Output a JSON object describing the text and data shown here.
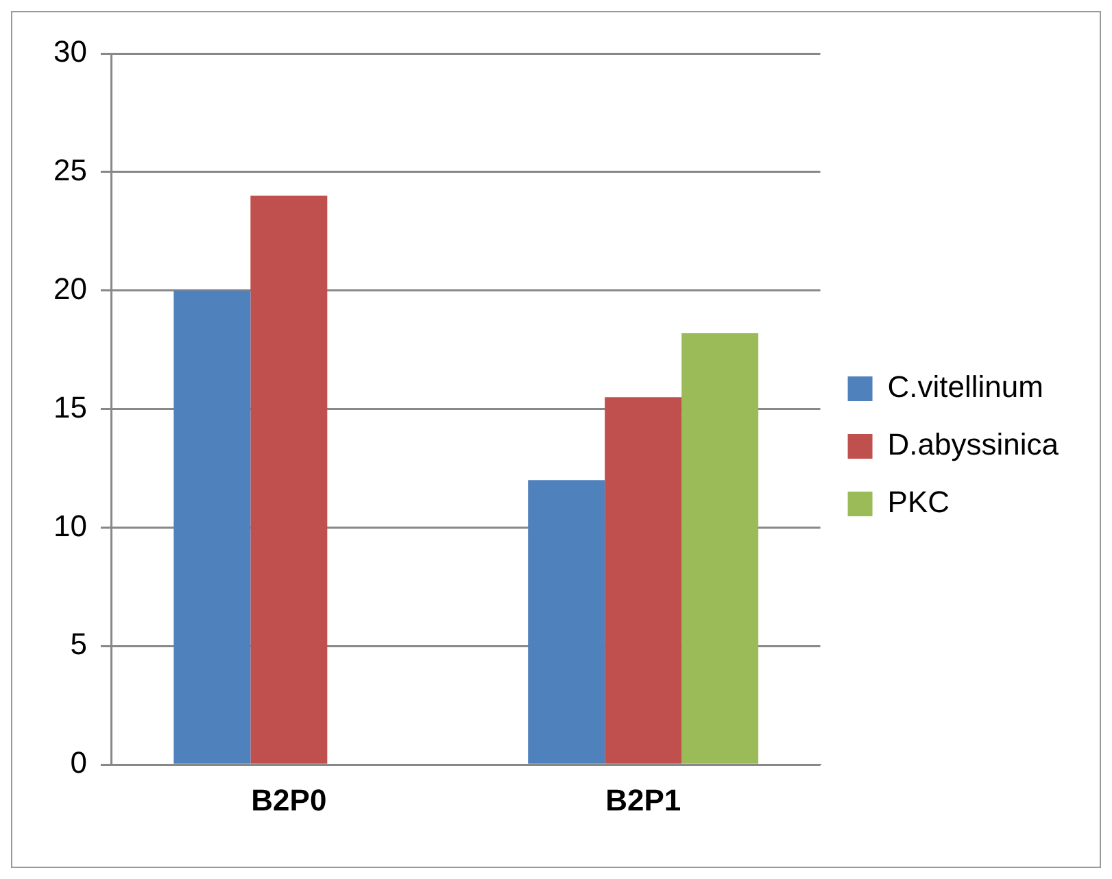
{
  "chart_data": {
    "type": "bar",
    "categories": [
      "B2P0",
      "B2P1"
    ],
    "series": [
      {
        "name": "C.vitellinum",
        "color": "#4f81bd",
        "values": [
          20,
          12
        ]
      },
      {
        "name": "D.abyssinica",
        "color": "#c0504d",
        "values": [
          24,
          15.5
        ]
      },
      {
        "name": "PKC",
        "color": "#9bbb59",
        "values": [
          null,
          18.2
        ]
      }
    ],
    "ylim": [
      0,
      30
    ],
    "yticks": [
      0,
      5,
      10,
      15,
      20,
      25,
      30
    ],
    "grid": "y",
    "legend": "right"
  }
}
